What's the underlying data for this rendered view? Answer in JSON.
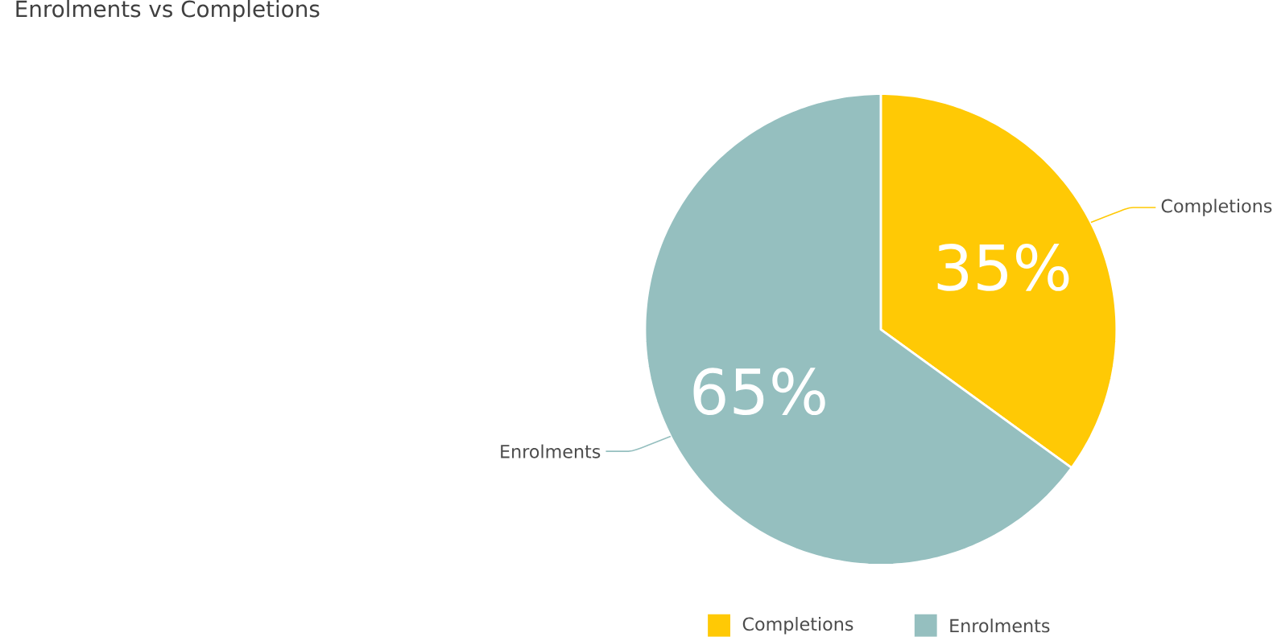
{
  "chart_data": {
    "type": "pie",
    "title": "Enrolments vs Completions",
    "categories": [
      "Completions",
      "Enrolments"
    ],
    "values": [
      35,
      65
    ],
    "value_labels": [
      "35%",
      "65%"
    ],
    "colors": [
      "#ffc905",
      "#95bfbf"
    ],
    "legend": "bottom"
  }
}
